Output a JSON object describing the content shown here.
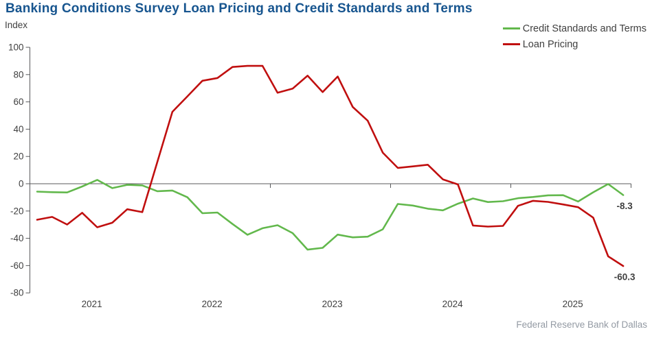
{
  "title": "Banking Conditions Survey Loan Pricing and Credit Standards and Terms",
  "y_axis_label": "Index",
  "footer": "Federal Reserve Bank of Dallas",
  "colors": {
    "title": "#17558f",
    "axis": "#58595b",
    "tick_text": "#404040",
    "footer_text": "#939aa3",
    "green_series": "#62b84c",
    "red_series": "#c00f0f"
  },
  "chart_data": {
    "type": "line",
    "title": "Banking Conditions Survey Loan Pricing and Credit Standards and Terms",
    "ylabel": "Index",
    "ylim": [
      -80,
      100
    ],
    "yticks": [
      100,
      80,
      60,
      40,
      20,
      0,
      -20,
      -40,
      -60,
      -80
    ],
    "grid": false,
    "legend_position": "top-right",
    "x_year_labels": [
      "2021",
      "2022",
      "2023",
      "2024",
      "2025"
    ],
    "x_axis_start_year": 2021,
    "x_axis_end_year": 2026,
    "x_start": 2021.06,
    "x_step": 0.125,
    "series": [
      {
        "name": "Credit Standards and Terms",
        "color": "#62b84c",
        "end_label": "-8.3",
        "values": [
          -5.8,
          -6.2,
          -6.4,
          -2.0,
          2.8,
          -3.2,
          -0.8,
          -1.2,
          -5.5,
          -5.0,
          -9.9,
          -21.6,
          -21.1,
          -29.5,
          -37.4,
          -32.6,
          -30.4,
          -36.2,
          -48.3,
          -47.0,
          -37.3,
          -39.3,
          -38.8,
          -33.4,
          -14.8,
          -16.0,
          -18.3,
          -19.5,
          -14.6,
          -10.8,
          -13.4,
          -12.8,
          -10.6,
          -9.7,
          -8.5,
          -8.4,
          -13.0,
          -6.3,
          -0.2,
          -8.3
        ]
      },
      {
        "name": "Loan Pricing",
        "color": "#c00f0f",
        "end_label": "-60.3",
        "values": [
          -26.4,
          -24.3,
          -29.9,
          -21.3,
          -31.9,
          -28.6,
          -18.7,
          -20.8,
          16.0,
          52.7,
          64.0,
          75.5,
          77.5,
          85.6,
          86.4,
          86.4,
          66.7,
          69.7,
          79.2,
          67.2,
          78.6,
          56.3,
          46.2,
          22.8,
          11.6,
          12.7,
          13.9,
          3.2,
          -0.5,
          -30.6,
          -31.4,
          -30.9,
          -16.2,
          -12.5,
          -13.3,
          -15.2,
          -17.2,
          -24.8,
          -53.2,
          -60.3
        ]
      }
    ]
  }
}
